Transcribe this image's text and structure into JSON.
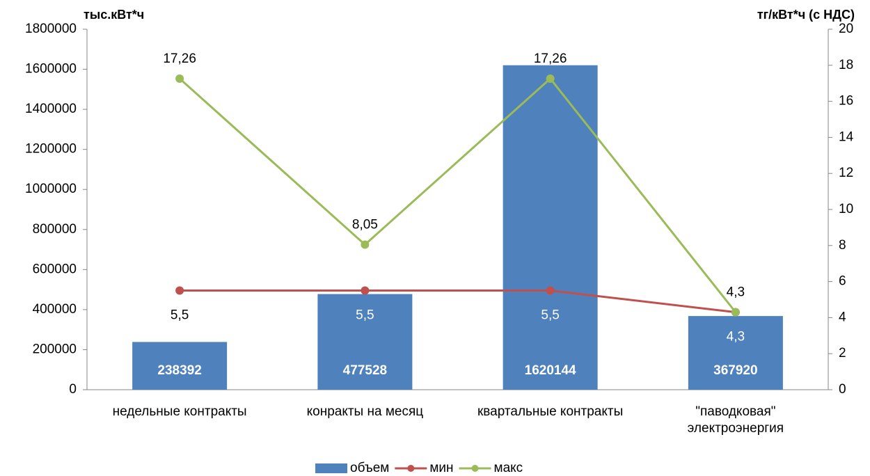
{
  "chart_data": {
    "type": "bar",
    "y_label": "тыс.кВт*ч",
    "y2_label": "тг/кВт*ч (с НДС)",
    "categories": [
      "недельные контракты",
      "конракты на месяц",
      "квартальные контракты",
      "\"паводковая\" электроэнергия"
    ],
    "series": [
      {
        "name": "объем",
        "type": "bar",
        "color": "#4f81bd",
        "values": [
          238392,
          477528,
          1620144,
          367920
        ]
      },
      {
        "name": "мин",
        "type": "line",
        "axis": "y2",
        "color": "#c0504d",
        "values": [
          5.5,
          5.5,
          5.5,
          4.3
        ],
        "value_labels": [
          "5,5",
          "5,5",
          "5,5",
          "4,3"
        ],
        "label_position": "below"
      },
      {
        "name": "макс",
        "type": "line",
        "axis": "y2",
        "color": "#9bbb59",
        "values": [
          17.26,
          8.05,
          17.26,
          4.3
        ],
        "value_labels": [
          "17,26",
          "8,05",
          "17,26",
          "4,3"
        ],
        "label_position": "above"
      }
    ],
    "ylim": [
      0,
      1800000
    ],
    "yticks": [
      0,
      200000,
      400000,
      600000,
      800000,
      1000000,
      1200000,
      1400000,
      1600000,
      1800000
    ],
    "y2lim": [
      0,
      20
    ],
    "y2ticks": [
      0,
      2,
      4,
      6,
      8,
      10,
      12,
      14,
      16,
      18,
      20
    ],
    "grid": false,
    "legend": "bottom"
  }
}
